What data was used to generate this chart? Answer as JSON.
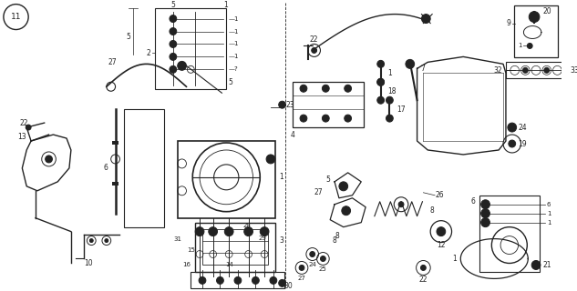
{
  "bg_color": "#ffffff",
  "line_color": "#222222",
  "fig_width": 6.33,
  "fig_height": 3.2,
  "dpi": 100,
  "diagram_number": "11"
}
